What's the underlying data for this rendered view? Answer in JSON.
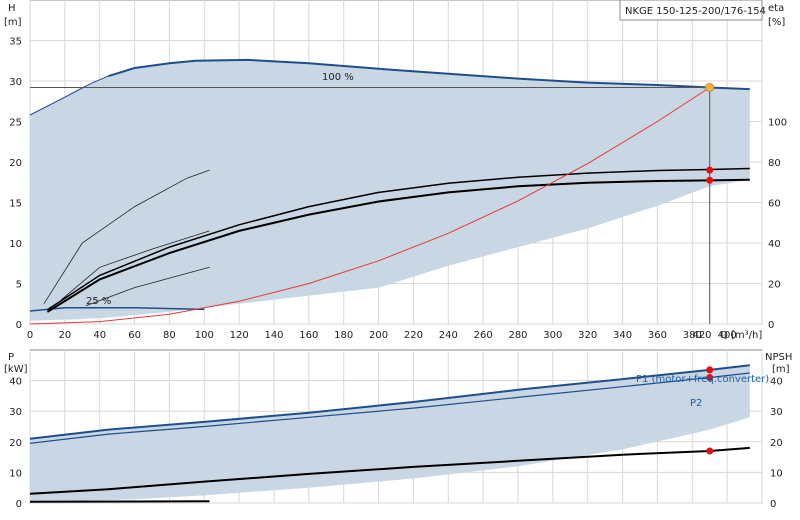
{
  "chart_data": [
    {
      "type": "line",
      "title": "NKGE 150-125-200/176-154",
      "ylabel": "H",
      "yunit": "[m]",
      "xlabel": "Q",
      "xunit": "[m³/h]",
      "y2label": "eta",
      "y2unit": "[%]",
      "xlim": [
        0,
        420
      ],
      "ylim": [
        0,
        40
      ],
      "y2lim": [
        0,
        160
      ],
      "xticks": [
        0,
        20,
        40,
        60,
        80,
        100,
        120,
        140,
        160,
        180,
        200,
        220,
        240,
        260,
        280,
        300,
        320,
        340,
        360,
        380,
        400,
        420
      ],
      "yticks": [
        0,
        5,
        10,
        15,
        20,
        25,
        30,
        35
      ],
      "y2ticks": [
        0,
        20,
        40,
        60,
        80,
        100
      ],
      "grid": true,
      "annotations": [
        {
          "text": "100 %",
          "x": 190,
          "y": 30.6
        },
        {
          "text": "25 %",
          "x": 42,
          "y": 2.6
        }
      ],
      "duty_point": {
        "q": 390,
        "h": 29.2,
        "eta_pct": 76,
        "eta_motor_pct": 71
      },
      "head_curve_100": {
        "x": [
          45,
          60,
          80,
          95,
          125,
          160,
          200,
          240,
          280,
          320,
          360,
          390,
          413
        ],
        "y": [
          30.6,
          31.6,
          32.2,
          32.5,
          32.6,
          32.2,
          31.5,
          30.9,
          30.3,
          29.8,
          29.5,
          29.2,
          29.0
        ]
      },
      "head_extension": {
        "x": [
          0,
          20,
          35,
          45
        ],
        "y": [
          25.8,
          28.0,
          29.7,
          30.6
        ]
      },
      "eta_system": {
        "x": [
          10,
          40,
          80,
          120,
          160,
          200,
          240,
          280,
          320,
          360,
          390,
          413
        ],
        "y": [
          7,
          24,
          38,
          49,
          58,
          65,
          69.5,
          72.5,
          74.5,
          75.8,
          76.3,
          76.8
        ]
      },
      "eta_motor": {
        "x": [
          10,
          40,
          80,
          120,
          160,
          200,
          240,
          280,
          320,
          360,
          390,
          413
        ],
        "y": [
          6,
          22,
          35,
          46,
          54,
          60.5,
          65,
          68,
          69.8,
          70.6,
          70.9,
          71.2
        ]
      },
      "eta_partial_load": [
        {
          "x": [
            8,
            30,
            60,
            90,
            103
          ],
          "y": [
            10,
            40,
            58,
            72,
            76
          ]
        },
        {
          "x": [
            18,
            40,
            70,
            103
          ],
          "y": [
            12,
            28,
            37,
            46
          ]
        },
        {
          "x": [
            32,
            60,
            90,
            103
          ],
          "y": [
            9,
            18,
            25,
            28
          ]
        }
      ],
      "min_speed_curve": {
        "x": [
          0,
          20,
          60,
          100
        ],
        "y": [
          1.6,
          2.0,
          2.0,
          1.8
        ]
      },
      "system_curve": {
        "x": [
          0,
          40,
          80,
          120,
          160,
          200,
          240,
          280,
          320,
          360,
          390
        ],
        "y": [
          0,
          0.3,
          1.2,
          2.8,
          5.0,
          7.8,
          11.2,
          15.2,
          19.8,
          25.0,
          29.2
        ]
      },
      "operating_area": {
        "x": [
          0,
          30,
          45,
          60,
          95,
          125,
          160,
          200,
          240,
          280,
          320,
          360,
          390,
          413,
          413,
          390,
          360,
          320,
          280,
          240,
          200,
          160,
          120,
          80,
          40,
          0
        ],
        "y": [
          25.8,
          29.3,
          30.6,
          31.6,
          32.5,
          32.6,
          32.2,
          31.5,
          30.9,
          30.3,
          29.8,
          29.5,
          29.2,
          29.0,
          17.8,
          17.0,
          14.6,
          11.8,
          9.5,
          7.2,
          4.5,
          3.5,
          2.5,
          1.5,
          0.7,
          0.4
        ]
      }
    },
    {
      "type": "line",
      "ylabel": "P",
      "yunit": "[kW]",
      "y2label": "NPSH",
      "y2unit": "[m]",
      "xlim": [
        0,
        420
      ],
      "ylim": [
        0,
        50
      ],
      "yticks": [
        0,
        10,
        20,
        30,
        40
      ],
      "y2ticks": [
        0,
        10,
        20,
        30,
        40
      ],
      "grid": true,
      "series": [
        {
          "name": "P1 (motor+freq.converter)",
          "x": [
            0,
            45,
            100,
            160,
            220,
            280,
            340,
            390,
            413
          ],
          "y": [
            21,
            24.0,
            26.5,
            29.5,
            33.0,
            37.0,
            40.5,
            43.5,
            45.0
          ]
        },
        {
          "name": "P2",
          "x": [
            0,
            45,
            100,
            160,
            220,
            280,
            340,
            390,
            413
          ],
          "y": [
            19.5,
            22.5,
            25.0,
            28.0,
            31.0,
            34.5,
            38.0,
            41.0,
            42.5
          ]
        },
        {
          "name": "",
          "x": [
            0,
            45,
            100,
            160,
            220,
            280,
            340,
            390,
            413
          ],
          "y": [
            3,
            4.5,
            7.0,
            9.5,
            11.8,
            13.8,
            15.8,
            17.0,
            18.0
          ]
        },
        {
          "name": "",
          "x": [
            0,
            60,
            103
          ],
          "y": [
            0.4,
            0.5,
            0.6
          ]
        }
      ],
      "duty_points": [
        {
          "q": 390,
          "p": 43.5
        },
        {
          "q": 390,
          "p": 41.0
        },
        {
          "q": 390,
          "npsh": 17.0
        }
      ],
      "operating_area": {
        "x": [
          0,
          45,
          100,
          160,
          220,
          280,
          340,
          390,
          413,
          413,
          390,
          340,
          280,
          220,
          160,
          100,
          60,
          30,
          0
        ],
        "y": [
          21,
          24.0,
          26.5,
          29.5,
          33.0,
          37.0,
          40.5,
          43.5,
          45.0,
          28.0,
          24.0,
          17.5,
          12.0,
          8.0,
          5.0,
          2.5,
          1.2,
          0.8,
          0.5
        ]
      }
    }
  ]
}
